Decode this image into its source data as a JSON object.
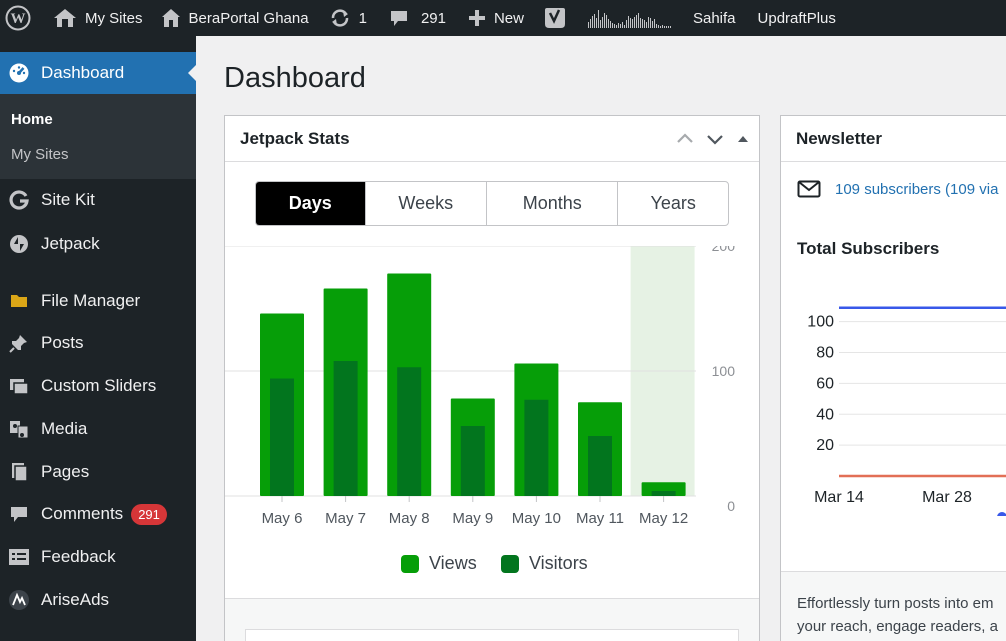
{
  "adminbar": {
    "my_sites": "My Sites",
    "site_name": "BeraPortal Ghana",
    "updates_count": "1",
    "comments_count": "291",
    "new_label": "New",
    "sahifa": "Sahifa",
    "updraftplus": "UpdraftPlus"
  },
  "sidebar": {
    "dashboard": "Dashboard",
    "submenu": {
      "home": "Home",
      "my_sites": "My Sites"
    },
    "items": [
      {
        "label": "Site Kit",
        "icon": "site-kit-icon"
      },
      {
        "label": "Jetpack",
        "icon": "jetpack-icon"
      },
      {
        "label": "File Manager",
        "icon": "folder-icon"
      },
      {
        "label": "Posts",
        "icon": "pin-icon"
      },
      {
        "label": "Custom Sliders",
        "icon": "sliders-icon"
      },
      {
        "label": "Media",
        "icon": "media-icon"
      },
      {
        "label": "Pages",
        "icon": "pages-icon"
      },
      {
        "label": "Comments",
        "icon": "comment-icon"
      },
      {
        "label": "Feedback",
        "icon": "feedback-icon"
      },
      {
        "label": "AriseAds",
        "icon": "ariseads-icon"
      }
    ],
    "comments_badge": "291"
  },
  "page": {
    "title": "Dashboard"
  },
  "jetpack": {
    "title": "Jetpack Stats",
    "tabs": [
      "Days",
      "Weeks",
      "Months",
      "Years"
    ],
    "selected_tab": "Days",
    "legend": {
      "views": "Views",
      "visitors": "Visitors"
    }
  },
  "newsletter": {
    "title": "Newsletter",
    "subscribers_text": "109 subscribers (109 via",
    "total_title": "Total Subscribers",
    "footer_line1": "Effortlessly turn posts into em",
    "footer_line2": "your reach, engage readers, a"
  },
  "colors": {
    "accent": "#2271b1",
    "sidebar_bg": "#1d2327",
    "views": "#069e08",
    "visitors": "#02751e",
    "highlight": "#e6f2e4",
    "badge": "#d63638"
  },
  "chart_data": [
    {
      "type": "bar",
      "categories": [
        "May 6",
        "May 7",
        "May 8",
        "May 9",
        "May 10",
        "May 11",
        "May 12"
      ],
      "series": [
        {
          "name": "Views",
          "values": [
            146,
            166,
            178,
            78,
            106,
            75,
            11
          ]
        },
        {
          "name": "Visitors",
          "values": [
            94,
            108,
            103,
            56,
            77,
            48,
            4
          ]
        }
      ],
      "yticks": [
        0,
        100,
        200
      ],
      "ylim": [
        0,
        200
      ],
      "highlight_category": "May 12",
      "grid": true
    },
    {
      "type": "line",
      "title": "Total Subscribers",
      "yticks": [
        20,
        40,
        60,
        80,
        100
      ],
      "xticks": [
        "Mar 14",
        "Mar 28"
      ],
      "series": [
        {
          "values": [
            109,
            109,
            109
          ],
          "color": "#3858e9"
        },
        {
          "values": [
            0,
            0,
            0
          ],
          "color": "#e26f56"
        }
      ],
      "ylim": [
        0,
        120
      ],
      "grid": true
    }
  ]
}
